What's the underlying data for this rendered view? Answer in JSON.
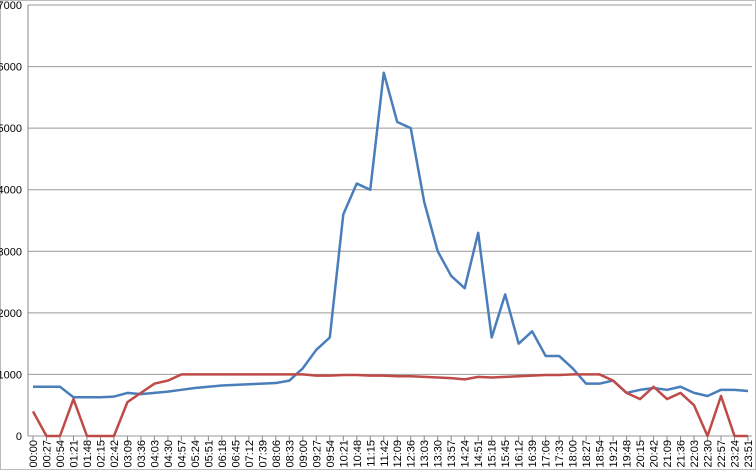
{
  "chart_data": {
    "type": "line",
    "categories": [
      "00:00",
      "00:27",
      "00:54",
      "01:21",
      "01:48",
      "02:15",
      "02:42",
      "03:09",
      "03:36",
      "04:03",
      "04:30",
      "04:57",
      "05:24",
      "05:51",
      "06:18",
      "06:45",
      "07:12",
      "07:39",
      "08:06",
      "08:33",
      "09:00",
      "09:27",
      "09:54",
      "10:21",
      "10:48",
      "11:15",
      "11:42",
      "12:09",
      "12:36",
      "13:03",
      "13:30",
      "13:57",
      "14:24",
      "14:51",
      "15:18",
      "15:45",
      "16:12",
      "16:39",
      "17:06",
      "17:33",
      "18:00",
      "18:27",
      "18:54",
      "19:21",
      "19:48",
      "20:15",
      "20:42",
      "21:09",
      "21:36",
      "22:03",
      "22:30",
      "22:57",
      "23:24",
      "23:51"
    ],
    "series": [
      {
        "color": "#4a7ebb",
        "values": [
          800,
          800,
          800,
          630,
          630,
          630,
          640,
          700,
          680,
          700,
          720,
          750,
          780,
          800,
          820,
          830,
          840,
          850,
          860,
          900,
          1100,
          1400,
          1600,
          3600,
          4100,
          4000,
          5900,
          5100,
          5000,
          3800,
          3000,
          2600,
          2400,
          3300,
          1600,
          2300,
          1500,
          1700,
          1300,
          1300,
          1100,
          850,
          850,
          900,
          700,
          750,
          780,
          750,
          800,
          700,
          650,
          750,
          750,
          730
        ]
      },
      {
        "color": "#be4b48",
        "values": [
          400,
          0,
          0,
          600,
          0,
          0,
          0,
          550,
          700,
          850,
          900,
          1000,
          1000,
          1000,
          1000,
          1000,
          1000,
          1000,
          1000,
          1000,
          1000,
          980,
          980,
          990,
          990,
          980,
          980,
          970,
          970,
          960,
          950,
          940,
          920,
          960,
          950,
          960,
          970,
          980,
          990,
          990,
          1000,
          1000,
          1000,
          900,
          700,
          600,
          800,
          600,
          700,
          500,
          0,
          650,
          0,
          0
        ]
      }
    ],
    "ylim": [
      0,
      7000
    ],
    "yticks": [
      0,
      1000,
      2000,
      3000,
      4000,
      5000,
      6000,
      7000
    ],
    "grid": true
  }
}
